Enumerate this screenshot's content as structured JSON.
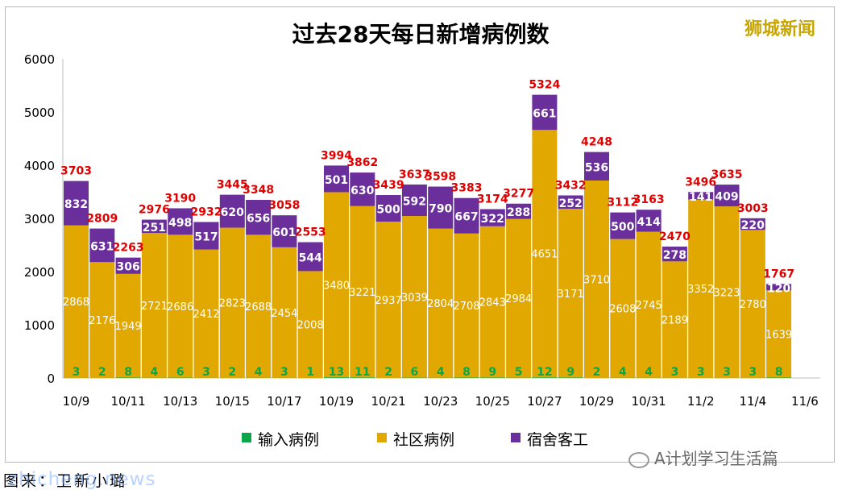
{
  "brand": "狮城新闻",
  "watermark": "A计划学习生活篇",
  "footer_text": "图来：卫新小璐",
  "footer_overlay": "zhicheng.news",
  "colors": {
    "imported": "#0aa64a",
    "community": "#e0a800",
    "dorm": "#6a2f9a",
    "total": "#e00000",
    "title": "#000000"
  },
  "chart_data": {
    "type": "bar",
    "stacked": true,
    "title": "过去28天每日新增病例数",
    "ylim": [
      0,
      6000
    ],
    "yticks": [
      0,
      1000,
      2000,
      3000,
      4000,
      5000,
      6000
    ],
    "xtick_labels": [
      "10/9",
      "10/11",
      "10/13",
      "10/15",
      "10/17",
      "10/19",
      "10/21",
      "10/23",
      "10/25",
      "10/27",
      "10/29",
      "10/31",
      "11/2",
      "11/4",
      "11/6"
    ],
    "legend_position": "bottom",
    "grid": false,
    "categories": [
      "10/9",
      "10/10",
      "10/11",
      "10/12",
      "10/13",
      "10/14",
      "10/15",
      "10/16",
      "10/17",
      "10/18",
      "10/19",
      "10/20",
      "10/21",
      "10/22",
      "10/23",
      "10/24",
      "10/25",
      "10/26",
      "10/27",
      "10/28",
      "10/29",
      "10/30",
      "10/31",
      "11/1",
      "11/2",
      "11/3",
      "11/4",
      "11/5"
    ],
    "series": [
      {
        "name": "输入病例",
        "values": [
          3,
          2,
          8,
          4,
          6,
          3,
          2,
          4,
          3,
          1,
          13,
          11,
          2,
          6,
          4,
          8,
          9,
          5,
          12,
          9,
          2,
          4,
          4,
          3,
          3,
          3,
          3,
          8
        ]
      },
      {
        "name": "社区病例",
        "values": [
          2868,
          2176,
          1949,
          2721,
          2686,
          2412,
          2823,
          2688,
          2454,
          2008,
          3480,
          3221,
          2937,
          3039,
          2804,
          2708,
          2843,
          2984,
          4651,
          3171,
          3710,
          2608,
          2745,
          2189,
          3352,
          3223,
          2780,
          1639
        ]
      },
      {
        "name": "宿舍客工",
        "values": [
          832,
          631,
          306,
          251,
          498,
          517,
          620,
          656,
          601,
          544,
          501,
          630,
          500,
          592,
          790,
          667,
          322,
          288,
          661,
          252,
          536,
          500,
          414,
          278,
          141,
          409,
          220,
          120
        ]
      }
    ],
    "totals": [
      3703,
      2809,
      2263,
      2976,
      3190,
      2932,
      3445,
      3348,
      3058,
      2553,
      3994,
      3862,
      3439,
      3637,
      3598,
      3383,
      3174,
      3277,
      5324,
      3432,
      4248,
      3112,
      3163,
      2470,
      3496,
      3635,
      3003,
      1767
    ]
  }
}
